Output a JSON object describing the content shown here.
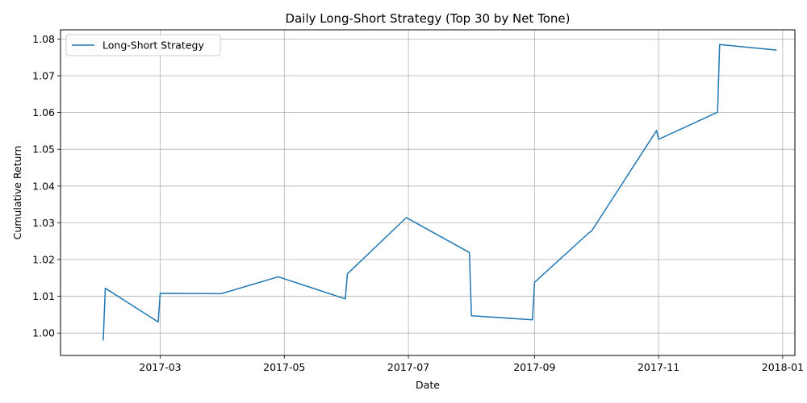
{
  "chart_data": {
    "type": "line",
    "title": "Daily Long-Short Strategy (Top 30 by Net Tone)",
    "xlabel": "Date",
    "ylabel": "Cumulative Return",
    "xlim": [
      "2017-01-11",
      "2018-01-07"
    ],
    "ylim": [
      0.9939,
      1.0825
    ],
    "x_ticks": [
      "2017-03-01",
      "2017-05-01",
      "2017-07-01",
      "2017-09-01",
      "2017-11-01",
      "2018-01-01"
    ],
    "x_tick_labels": [
      "2017-03",
      "2017-05",
      "2017-07",
      "2017-09",
      "2017-11",
      "2018-01"
    ],
    "y_ticks": [
      1.0,
      1.01,
      1.02,
      1.03,
      1.04,
      1.05,
      1.06,
      1.07,
      1.08
    ],
    "y_tick_labels": [
      "1.00",
      "1.01",
      "1.02",
      "1.03",
      "1.04",
      "1.05",
      "1.06",
      "1.07",
      "1.08"
    ],
    "grid": true,
    "legend_position": "top-left",
    "series": [
      {
        "name": "Long-Short Strategy",
        "color": "#1f77b4",
        "points": [
          [
            "2017-02-01",
            0.998
          ],
          [
            "2017-02-02",
            1.0122
          ],
          [
            "2017-02-28",
            1.003
          ],
          [
            "2017-03-01",
            1.0108
          ],
          [
            "2017-03-31",
            1.0107
          ],
          [
            "2017-04-28",
            1.0153
          ],
          [
            "2017-05-31",
            1.0093
          ],
          [
            "2017-06-01",
            1.0161
          ],
          [
            "2017-06-30",
            1.0314
          ],
          [
            "2017-07-31",
            1.0219
          ],
          [
            "2017-08-01",
            1.0047
          ],
          [
            "2017-08-31",
            1.0036
          ],
          [
            "2017-09-01",
            1.0138
          ],
          [
            "2017-09-28",
            1.0274
          ],
          [
            "2017-09-29",
            1.0277
          ],
          [
            "2017-10-31",
            1.0551
          ],
          [
            "2017-11-01",
            1.0527
          ],
          [
            "2017-11-30",
            1.0601
          ],
          [
            "2017-12-01",
            1.0785
          ],
          [
            "2017-12-29",
            1.077
          ]
        ]
      }
    ]
  }
}
